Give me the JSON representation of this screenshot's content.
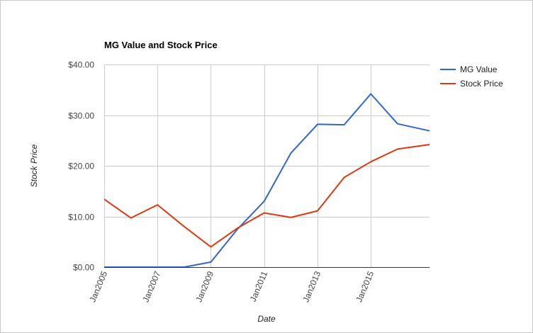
{
  "chart_data": {
    "type": "line",
    "title": "MG Value and Stock Price",
    "xlabel": "Date",
    "ylabel": "Stock Price",
    "x_tick_labels": [
      "Jan2005",
      "Jan2007",
      "Jan2009",
      "Jan2011",
      "Jan2013",
      "Jan2015"
    ],
    "x_ticks": [
      2005,
      2007,
      2009,
      2011,
      2013,
      2015
    ],
    "xlim": [
      2005,
      2017.2
    ],
    "y_tick_labels": [
      "$0.00",
      "$10.00",
      "$20.00",
      "$30.00",
      "$40.00"
    ],
    "y_ticks": [
      0,
      10,
      20,
      30,
      40
    ],
    "ylim": [
      0,
      40
    ],
    "grid": true,
    "legend": "right",
    "series": [
      {
        "name": "MG Value",
        "color": "#3366cc",
        "x": [
          2005,
          2006,
          2007,
          2008,
          2009,
          2010,
          2011,
          2012,
          2013,
          2014,
          2015,
          2016,
          2017.2
        ],
        "values": [
          0,
          0,
          0,
          0,
          1.0,
          7.5,
          13.0,
          22.5,
          28.2,
          28.1,
          34.2,
          28.3,
          26.9
        ]
      },
      {
        "name": "Stock Price",
        "color": "#dc3912",
        "x": [
          2005,
          2006,
          2007,
          2008,
          2009,
          2010,
          2011,
          2012,
          2013,
          2014,
          2015,
          2016,
          2017.2
        ],
        "values": [
          13.4,
          9.7,
          12.3,
          8.0,
          4.0,
          7.7,
          10.7,
          9.8,
          11.1,
          17.7,
          20.8,
          23.3,
          24.2
        ]
      }
    ]
  }
}
